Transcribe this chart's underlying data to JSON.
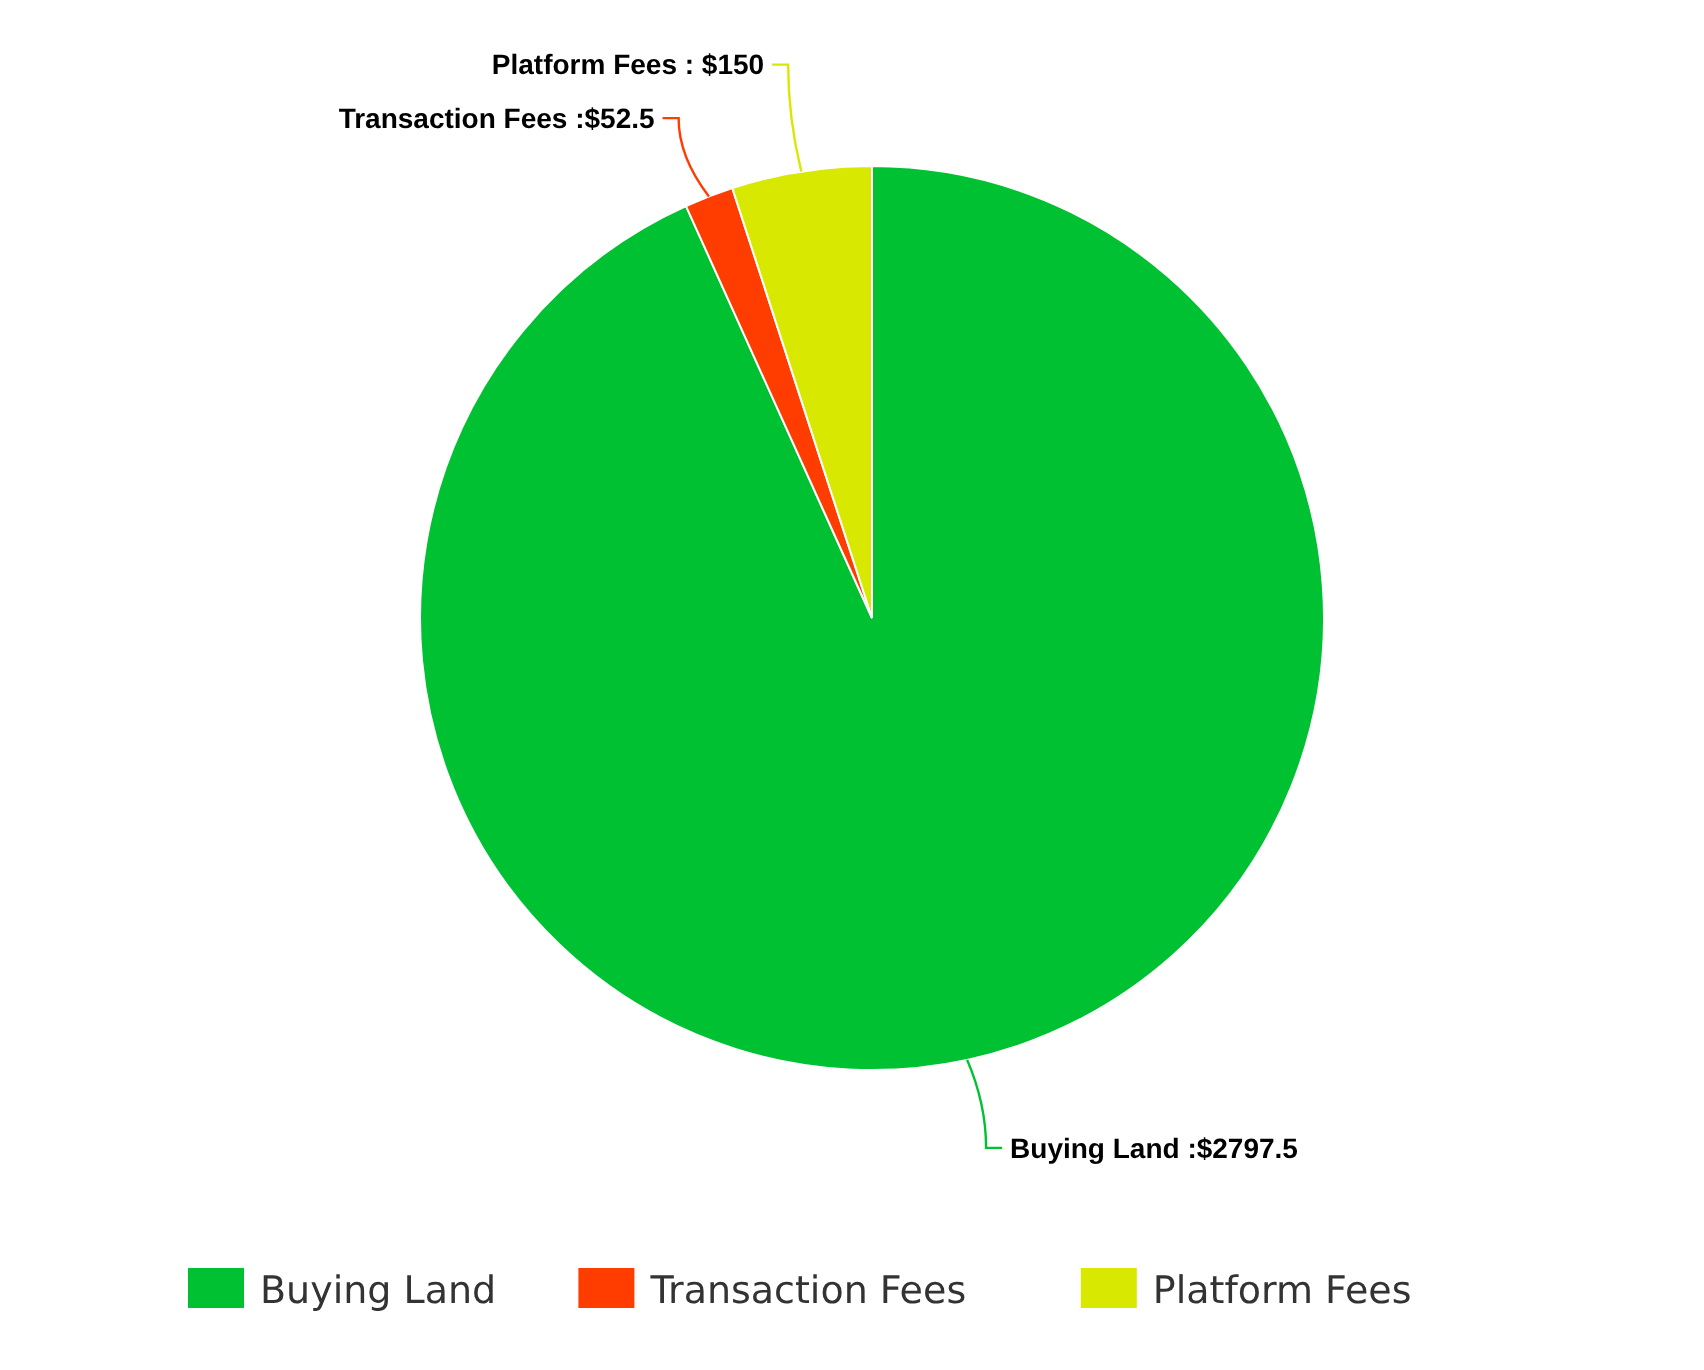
{
  "chart_data": {
    "type": "pie",
    "categories": [
      "Buying Land",
      "Transaction Fees",
      "Platform Fees"
    ],
    "values": [
      2797.5,
      52.5,
      150
    ],
    "colors": [
      "#00c132",
      "#ff3d00",
      "#d8e800"
    ],
    "value_labels": [
      "Buying Land :$2797.5",
      "Transaction Fees :$52.5",
      "Platform Fees : $150"
    ],
    "legend": "bottom"
  }
}
